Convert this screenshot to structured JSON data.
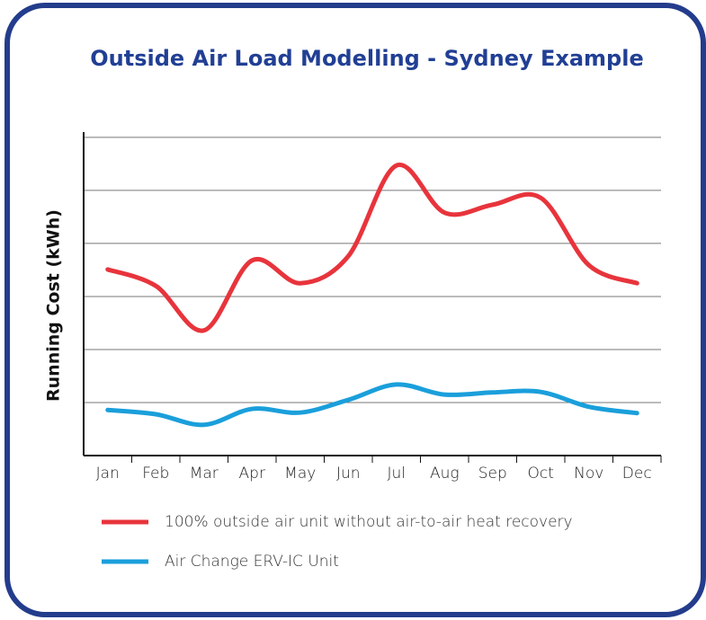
{
  "chart_data": {
    "type": "line",
    "title": "Outside Air Load Modelling - Sydney Example",
    "y_label": "Running Cost (kWh)",
    "categories": [
      "Jan",
      "Feb",
      "Mar",
      "Apr",
      "May",
      "Jun",
      "Jul",
      "Aug",
      "Sep",
      "Oct",
      "Nov",
      "Dec"
    ],
    "series": [
      {
        "name": "100% outside air unit without air-to-air heat recovery",
        "color": "#e8343c",
        "values": [
          3.51,
          3.2,
          2.36,
          3.68,
          3.25,
          3.76,
          5.47,
          4.58,
          4.73,
          4.86,
          3.59,
          3.25
        ]
      },
      {
        "name": "Air Change ERV-IC Unit",
        "color": "#1a9fdb",
        "values": [
          0.86,
          0.78,
          0.58,
          0.88,
          0.81,
          1.05,
          1.34,
          1.15,
          1.19,
          1.2,
          0.92,
          0.8
        ]
      }
    ],
    "ylim": [
      0,
      6.1
    ],
    "yticks": [
      1,
      2,
      3,
      4,
      5,
      6
    ],
    "grid": true
  }
}
